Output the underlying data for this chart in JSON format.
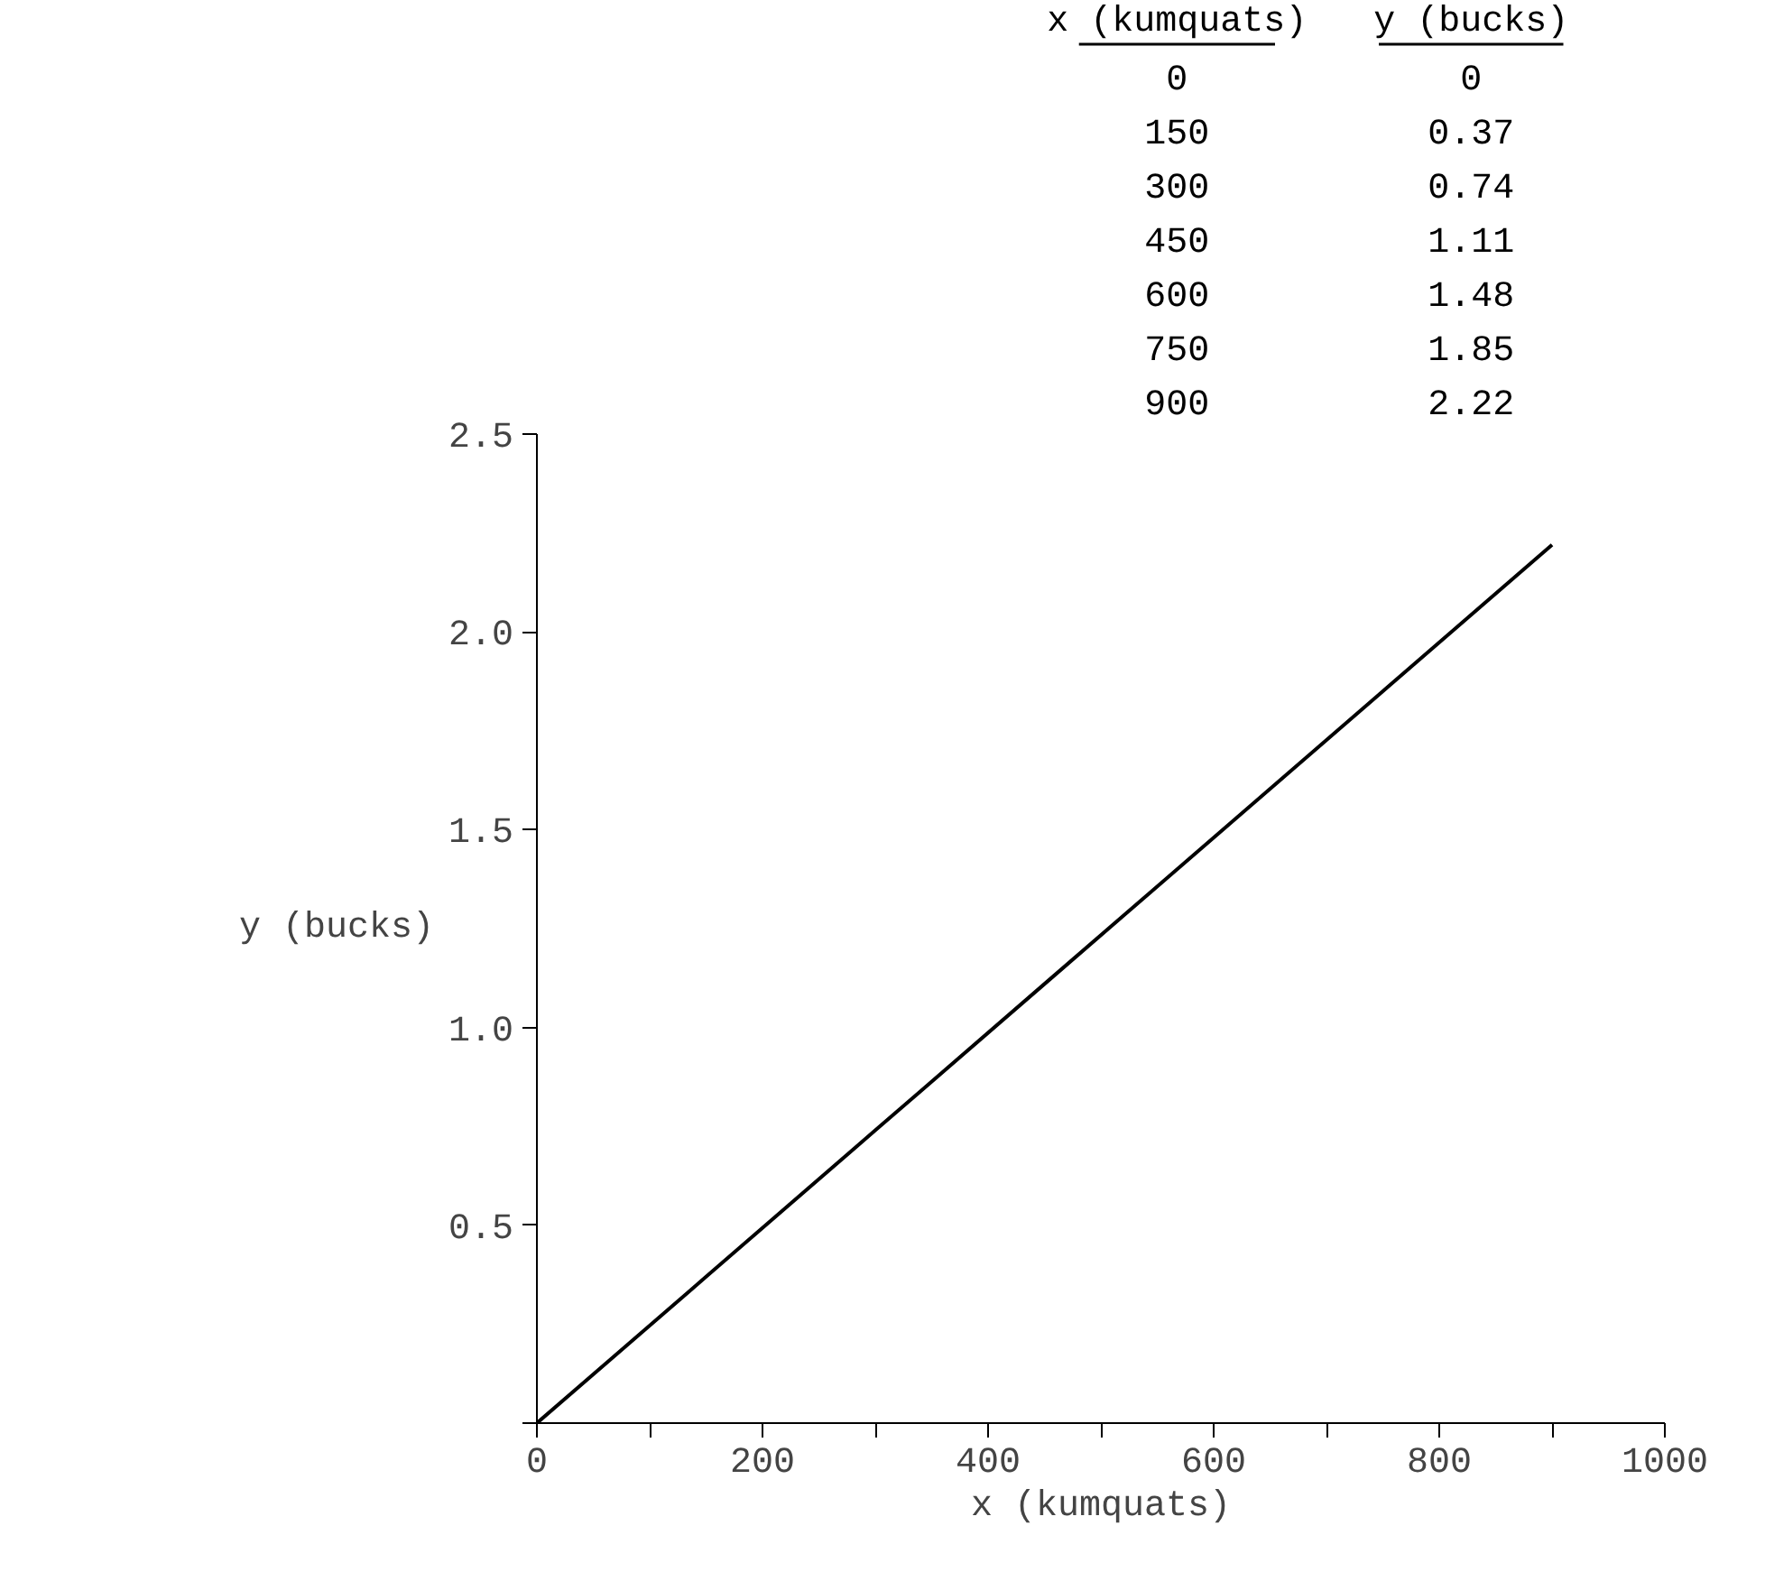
{
  "chart_data": {
    "type": "line",
    "xlabel": "x (kumquats)",
    "ylabel": "y (bucks)",
    "x": [
      0,
      150,
      300,
      450,
      600,
      750,
      900
    ],
    "values": [
      0,
      0.37,
      0.74,
      1.11,
      1.48,
      1.85,
      2.22
    ],
    "color": "#000000",
    "annotations": [
      "0",
      "0",
      "150",
      "0.37",
      "300",
      "0.74",
      "450",
      "1.11",
      "600",
      "1.48",
      "750",
      "1.85",
      "900",
      "2.22"
    ],
    "xlim": [
      0,
      1000
    ],
    "xticks": [
      0,
      {
        "value": 100,
        "label": null
      },
      200,
      {
        "value": 300,
        "label": null
      },
      400,
      {
        "value": 500,
        "label": null
      },
      600,
      {
        "value": 700,
        "label": null
      },
      800,
      {
        "value": 900,
        "label": null
      },
      1000
    ],
    "ylim": [
      0,
      2.5
    ],
    "yticks": [
      {
        "value": 0,
        "label": null
      },
      0.5,
      {
        "value": 1,
        "label": "1.0"
      },
      1.5,
      {
        "value": 2,
        "label": "2.0"
      },
      2.5
    ],
    "grid": false,
    "marker": "none",
    "line_style": "solid"
  }
}
